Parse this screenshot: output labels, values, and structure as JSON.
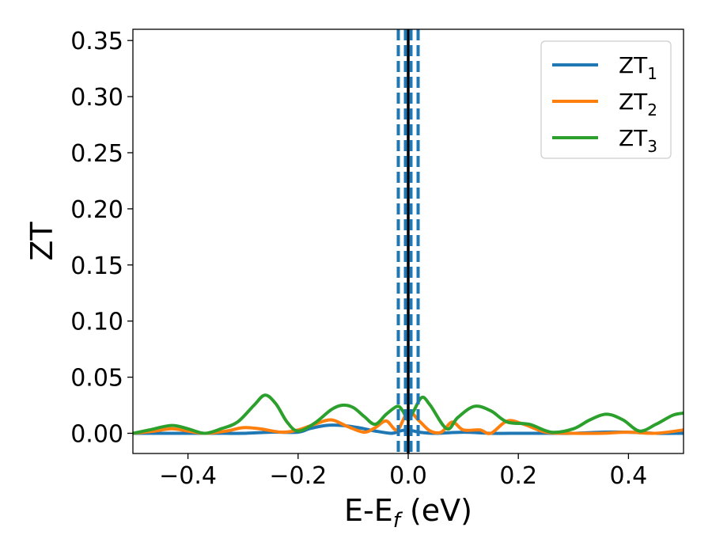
{
  "chart_data": {
    "type": "line",
    "title": "",
    "xlabel": "E-E",
    "xlabel_sub": "f",
    "xlabel_unit": " (eV)",
    "ylabel": "ZT",
    "xlim": [
      -0.5,
      0.5
    ],
    "ylim": [
      -0.018,
      0.36
    ],
    "xticks": [
      -0.4,
      -0.2,
      0.0,
      0.2,
      0.4
    ],
    "xtick_labels": [
      "−0.4",
      "−0.2",
      "0.0",
      "0.2",
      "0.4"
    ],
    "yticks": [
      0.0,
      0.05,
      0.1,
      0.15,
      0.2,
      0.25,
      0.3,
      0.35
    ],
    "ytick_labels": [
      "0.00",
      "0.05",
      "0.10",
      "0.15",
      "0.20",
      "0.25",
      "0.30",
      "0.35"
    ],
    "grid": false,
    "legend_position": "top-right",
    "vlines": [
      {
        "x": 0.0,
        "color": "#000000",
        "style": "solid"
      },
      {
        "x": -0.018,
        "color": "#1f77b4",
        "style": "dashed"
      },
      {
        "x": -0.005,
        "color": "#1f77b4",
        "style": "dashed"
      },
      {
        "x": 0.005,
        "color": "#1f77b4",
        "style": "dashed"
      },
      {
        "x": 0.018,
        "color": "#1f77b4",
        "style": "dashed"
      }
    ],
    "series": [
      {
        "name": "ZT",
        "sub": "1",
        "color": "#1f77b4",
        "x": [
          -0.5,
          -0.45,
          -0.4,
          -0.35,
          -0.3,
          -0.25,
          -0.2,
          -0.18,
          -0.15,
          -0.12,
          -0.09,
          -0.06,
          -0.03,
          -0.015,
          0.0,
          0.02,
          0.05,
          0.1,
          0.15,
          0.2,
          0.25,
          0.3,
          0.35,
          0.4,
          0.45,
          0.5
        ],
        "y": [
          0.0,
          0.0,
          0.0,
          0.0,
          0.0,
          0.001,
          0.001,
          0.004,
          0.007,
          0.007,
          0.005,
          0.002,
          0.0,
          0.002,
          0.003,
          0.001,
          0.0,
          0.001,
          0.0,
          0.0,
          0.0,
          0.0,
          0.001,
          0.001,
          0.0,
          0.0
        ]
      },
      {
        "name": "ZT",
        "sub": "2",
        "color": "#ff7f0e",
        "x": [
          -0.5,
          -0.46,
          -0.43,
          -0.4,
          -0.37,
          -0.33,
          -0.3,
          -0.27,
          -0.23,
          -0.2,
          -0.17,
          -0.14,
          -0.11,
          -0.08,
          -0.06,
          -0.04,
          -0.02,
          0.0,
          0.02,
          0.04,
          0.06,
          0.08,
          0.1,
          0.13,
          0.15,
          0.18,
          0.21,
          0.25,
          0.3,
          0.35,
          0.4,
          0.45,
          0.5
        ],
        "y": [
          0.0,
          0.002,
          0.004,
          0.002,
          0.0,
          0.002,
          0.005,
          0.004,
          0.001,
          0.003,
          0.008,
          0.012,
          0.006,
          0.001,
          0.005,
          0.011,
          0.003,
          0.019,
          0.011,
          0.002,
          0.001,
          0.01,
          0.003,
          0.003,
          0.0,
          0.011,
          0.008,
          0.001,
          0.0,
          0.0,
          0.001,
          0.0,
          0.003
        ]
      },
      {
        "name": "ZT",
        "sub": "3",
        "color": "#2ca02c",
        "x": [
          -0.5,
          -0.47,
          -0.43,
          -0.4,
          -0.37,
          -0.34,
          -0.31,
          -0.28,
          -0.26,
          -0.24,
          -0.22,
          -0.2,
          -0.17,
          -0.14,
          -0.12,
          -0.1,
          -0.08,
          -0.06,
          -0.04,
          -0.02,
          -0.01,
          0.0,
          0.01,
          0.025,
          0.04,
          0.07,
          0.09,
          0.12,
          0.15,
          0.18,
          0.22,
          0.26,
          0.3,
          0.33,
          0.36,
          0.39,
          0.42,
          0.45,
          0.48,
          0.5
        ],
        "y": [
          0.0,
          0.003,
          0.007,
          0.004,
          0.0,
          0.004,
          0.01,
          0.025,
          0.034,
          0.026,
          0.01,
          0.002,
          0.009,
          0.021,
          0.025,
          0.023,
          0.015,
          0.008,
          0.017,
          0.024,
          0.02,
          0.012,
          0.02,
          0.032,
          0.025,
          0.004,
          0.014,
          0.024,
          0.02,
          0.01,
          0.008,
          0.001,
          0.004,
          0.012,
          0.017,
          0.012,
          0.002,
          0.008,
          0.016,
          0.018
        ]
      }
    ]
  }
}
